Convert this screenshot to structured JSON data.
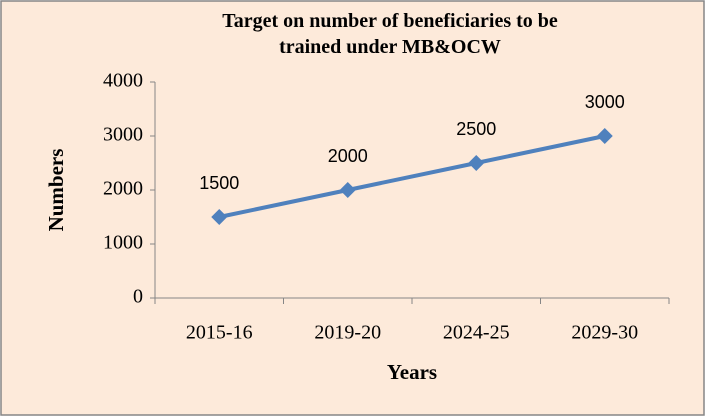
{
  "chart_data": {
    "type": "line",
    "title": "Target on number of beneficiaries to be trained under MB&OCW",
    "x_label": "Years",
    "y_label": "Numbers",
    "categories": [
      "2015-16",
      "2019-20",
      "2024-25",
      "2029-30"
    ],
    "series": [
      {
        "name": "Numbers",
        "color": "#4f81bd",
        "values": [
          1500,
          2000,
          2500,
          3000
        ]
      }
    ],
    "ylim": [
      0,
      4000
    ],
    "yticks": [
      0,
      1000,
      2000,
      3000,
      4000
    ],
    "grid": false,
    "data_labels": true
  }
}
